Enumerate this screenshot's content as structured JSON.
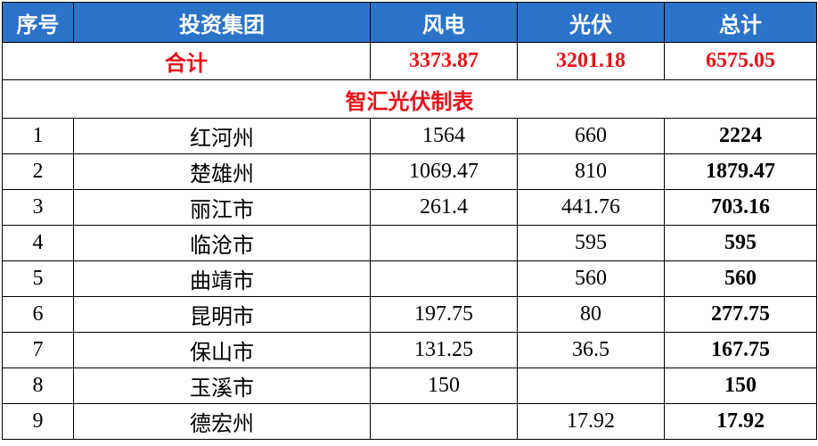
{
  "header": [
    "序号",
    "投资集团",
    "风电",
    "光伏",
    "总计"
  ],
  "total": {
    "label": "合计",
    "wind": 3373.87,
    "solar": 3201.18,
    "sum": 6575.05
  },
  "section_title": "智汇光伏制表",
  "table": {
    "rows": [
      [
        1,
        "红河州",
        1564,
        660,
        2224
      ],
      [
        2,
        "楚雄州",
        1069.47,
        810,
        1879.47
      ],
      [
        3,
        "丽江市",
        261.4,
        441.76,
        703.16
      ],
      [
        4,
        "临沧市",
        null,
        595,
        595
      ],
      [
        5,
        "曲靖市",
        null,
        560,
        560
      ],
      [
        6,
        "昆明市",
        197.75,
        80,
        277.75
      ],
      [
        7,
        "保山市",
        131.25,
        36.5,
        167.75
      ],
      [
        8,
        "玉溪市",
        150,
        null,
        150
      ],
      [
        9,
        "德宏州",
        null,
        17.92,
        17.92
      ]
    ]
  }
}
